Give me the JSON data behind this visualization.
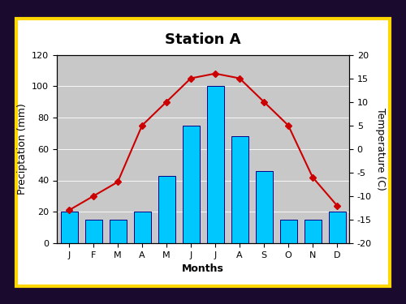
{
  "months": [
    "J",
    "F",
    "M",
    "A",
    "M",
    "J",
    "J",
    "A",
    "S",
    "O",
    "N",
    "D"
  ],
  "precipitation": [
    20,
    15,
    15,
    20,
    43,
    75,
    100,
    68,
    46,
    15,
    15,
    20
  ],
  "temperature": [
    -13,
    -10,
    -7,
    5,
    10,
    15,
    16,
    15,
    10,
    5,
    -6,
    -12
  ],
  "bar_color": "#00C8FF",
  "bar_edge_color": "#000088",
  "line_color": "#CC0000",
  "marker_color": "#CC0000",
  "plot_bg_color": "#C8C8C8",
  "fig_bg_color": "#ffffff",
  "outer_bg_color": "#1a0a2e",
  "frame_color": "#FFD700",
  "title": "Station A",
  "xlabel": "Months",
  "ylabel_left": "Preciptation (mm)",
  "ylabel_right": "Temperature (C)",
  "ylim_left": [
    0,
    120
  ],
  "ylim_right": [
    -20,
    20
  ],
  "yticks_left": [
    0,
    20,
    40,
    60,
    80,
    100,
    120
  ],
  "yticks_right": [
    -20,
    -15,
    -10,
    -5,
    0,
    5,
    10,
    15,
    20
  ],
  "title_fontsize": 13,
  "label_fontsize": 9,
  "tick_fontsize": 8
}
